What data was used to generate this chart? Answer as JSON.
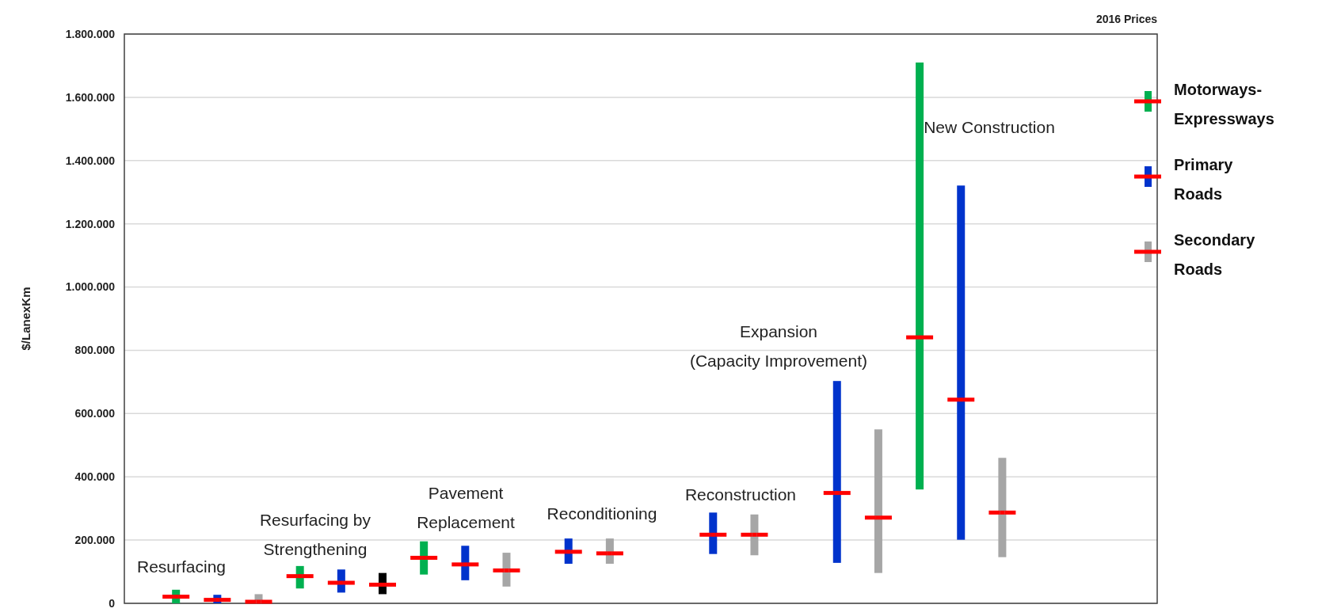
{
  "chart_data": {
    "type": "bar",
    "subtitle": "2016 Prices",
    "ylabel": "$/LanexKm",
    "categories": [
      null,
      null,
      null,
      null,
      null,
      null,
      null,
      null,
      null,
      null,
      null,
      null,
      null,
      null,
      null,
      null,
      null,
      null,
      null,
      null,
      null,
      null,
      null,
      null,
      null,
      null,
      null,
      null,
      null,
      null,
      null,
      null,
      null,
      null,
      null,
      null,
      null,
      null,
      null,
      null,
      null,
      null,
      null,
      null,
      null,
      null,
      null,
      null,
      null,
      null
    ],
    "ylim": [
      0,
      1800000
    ],
    "yticks": [
      0,
      {
        "value": 200000,
        "label": "200.000"
      },
      {
        "value": 400000,
        "label": "400.000"
      },
      {
        "value": 600000,
        "label": "600.000"
      },
      {
        "value": 800000,
        "label": "800.000"
      },
      {
        "value": 1000000,
        "label": "1.000.000"
      },
      {
        "value": 1200000,
        "label": "1.200.000"
      },
      {
        "value": 1400000,
        "label": "1.400.000"
      },
      {
        "value": 1600000,
        "label": "1.600.000"
      },
      {
        "value": 1800000,
        "label": "1.800.000"
      }
    ],
    "grid": "y",
    "legend": "right",
    "annotations": [
      "Resurfacing",
      "Resurfacing by Strengthening",
      "Pavement Replacement",
      "Reconditioning",
      "Reconstruction",
      "Expansion (Capacity Improvement)",
      "New Construction"
    ],
    "series": [
      {
        "name": "Motorways-Expressways",
        "color": "#00b050",
        "base": [
          null,
          null,
          0,
          null,
          null,
          null,
          null,
          null,
          47000,
          null,
          null,
          null,
          null,
          null,
          91000,
          null,
          null,
          null,
          null,
          null,
          null,
          null,
          null,
          null,
          null,
          null,
          null,
          null,
          null,
          null,
          null,
          null,
          null,
          null,
          null,
          null,
          null,
          null,
          360000,
          null,
          null,
          null,
          null,
          null,
          null,
          null,
          null,
          null,
          null,
          null
        ],
        "values": [
          null,
          null,
          43000,
          null,
          null,
          null,
          null,
          null,
          71000,
          null,
          null,
          null,
          null,
          null,
          105000,
          null,
          null,
          null,
          null,
          null,
          null,
          null,
          null,
          null,
          null,
          null,
          null,
          null,
          null,
          null,
          null,
          null,
          null,
          null,
          null,
          null,
          null,
          null,
          1350000,
          null,
          null,
          null,
          null,
          null,
          null,
          null,
          null,
          null,
          null,
          null
        ]
      },
      {
        "name": "Primary Roads",
        "color": "#0033cc",
        "base": [
          null,
          null,
          null,
          null,
          0,
          null,
          null,
          null,
          null,
          null,
          34000,
          null,
          null,
          null,
          null,
          null,
          73000,
          null,
          null,
          null,
          null,
          125000,
          null,
          null,
          null,
          null,
          null,
          null,
          156000,
          null,
          null,
          null,
          null,
          null,
          128000,
          null,
          null,
          null,
          null,
          null,
          201000,
          null,
          null,
          null,
          null,
          null,
          null,
          null,
          null,
          null
        ],
        "values": [
          null,
          null,
          null,
          null,
          27000,
          null,
          null,
          null,
          null,
          null,
          73000,
          null,
          null,
          null,
          null,
          null,
          109000,
          null,
          null,
          null,
          null,
          80000,
          null,
          null,
          null,
          null,
          null,
          null,
          131000,
          null,
          null,
          null,
          null,
          null,
          575000,
          null,
          null,
          null,
          null,
          null,
          1120000,
          null,
          null,
          null,
          null,
          null,
          null,
          null,
          null,
          null
        ]
      },
      {
        "name": "Secondary Roads",
        "color": "#a6a6a6",
        "colors": [
          null,
          null,
          null,
          null,
          null,
          null,
          "#a6a6a6",
          null,
          null,
          null,
          null,
          null,
          "#000000",
          null,
          null,
          null,
          null,
          null,
          "#a6a6a6",
          null,
          null,
          null,
          null,
          "#a6a6a6",
          null,
          null,
          null,
          null,
          null,
          null,
          "#a6a6a6",
          null,
          null,
          null,
          null,
          null,
          "#a6a6a6",
          null,
          null,
          null,
          null,
          null,
          "#a6a6a6",
          null,
          null,
          null,
          null,
          null,
          null,
          null
        ],
        "base": [
          null,
          null,
          null,
          null,
          null,
          null,
          0,
          null,
          null,
          null,
          null,
          null,
          29000,
          null,
          null,
          null,
          null,
          null,
          53000,
          null,
          null,
          null,
          null,
          125000,
          null,
          null,
          null,
          null,
          null,
          null,
          152000,
          null,
          null,
          null,
          null,
          null,
          96000,
          null,
          null,
          null,
          null,
          null,
          146000,
          null,
          null,
          null,
          null,
          null,
          null,
          null
        ],
        "values": [
          null,
          null,
          null,
          null,
          null,
          null,
          29000,
          null,
          null,
          null,
          null,
          null,
          67000,
          null,
          null,
          null,
          null,
          null,
          107000,
          null,
          null,
          null,
          null,
          80000,
          null,
          null,
          null,
          null,
          null,
          null,
          129000,
          null,
          null,
          null,
          null,
          null,
          454000,
          null,
          null,
          null,
          null,
          null,
          314000,
          null,
          null,
          null,
          null,
          null,
          null,
          null
        ]
      },
      {
        "type": "scatter",
        "color": "#ff0000",
        "values": [
          null,
          null,
          21000,
          null,
          11000,
          null,
          5000,
          null,
          86000,
          null,
          65000,
          null,
          59000,
          null,
          144000,
          null,
          123000,
          null,
          104000,
          null,
          null,
          163000,
          null,
          158000,
          null,
          null,
          null,
          null,
          217000,
          null,
          217000,
          null,
          null,
          null,
          349000,
          null,
          271000,
          null,
          841000,
          null,
          644000,
          null,
          287000,
          null,
          null,
          null,
          null,
          null,
          null,
          null
        ]
      }
    ]
  }
}
